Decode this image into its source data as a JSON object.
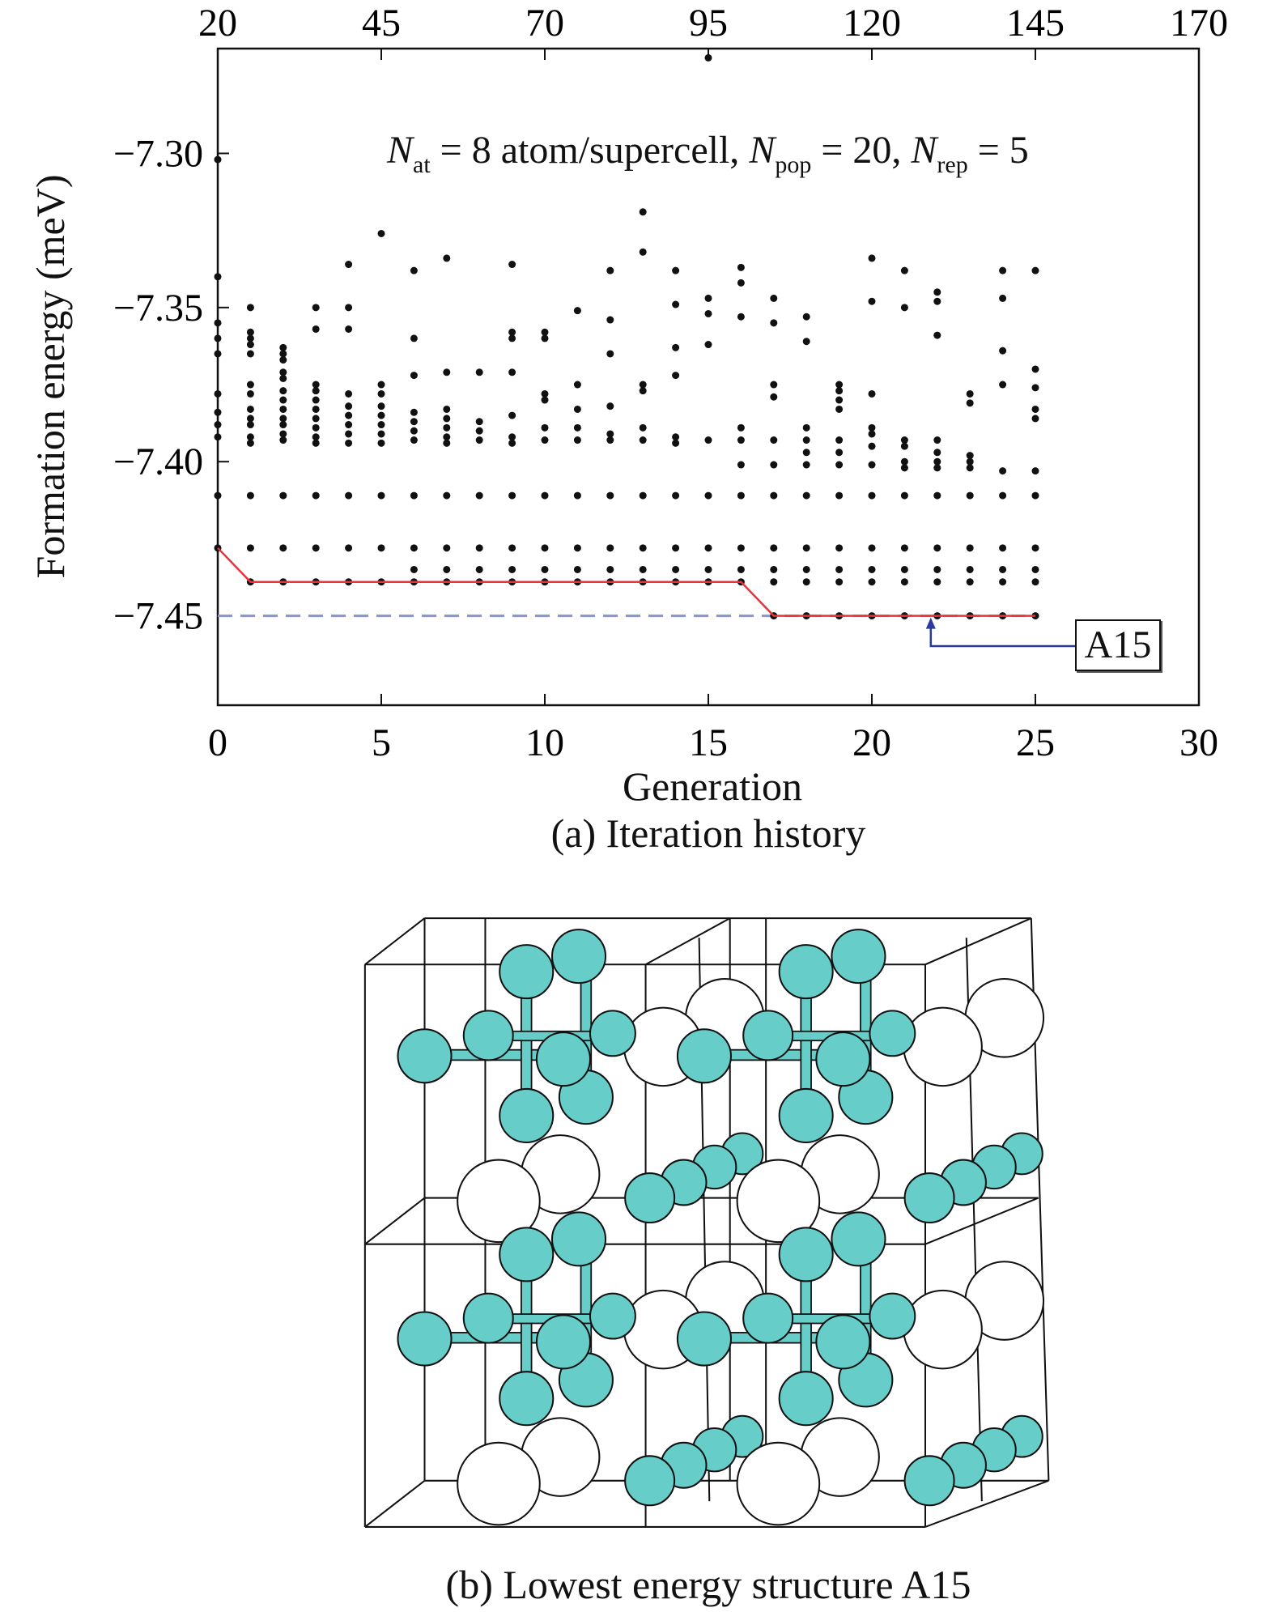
{
  "chart_data": {
    "type": "scatter",
    "title": "",
    "caption": "(a) Iteration history",
    "xlabel": "Generation",
    "ylabel": "Formation energy (meV)",
    "xlim": [
      0,
      30
    ],
    "ylim": [
      -7.479,
      -7.266
    ],
    "xticks": [
      0,
      5,
      10,
      15,
      20,
      25,
      30
    ],
    "yticks": [
      -7.3,
      -7.35,
      -7.4,
      -7.45
    ],
    "ytick_labels": [
      "−7.30",
      "−7.35",
      "−7.40",
      "−7.45"
    ],
    "top_xticks": [
      "20",
      "45",
      "70",
      "95",
      "120",
      "145",
      "170"
    ],
    "annotation": {
      "n1": "N",
      "s1": "at",
      "t1": " = 8 atom/supercell, ",
      "n2": "N",
      "s2": "pop",
      "t2": " = 20, ",
      "n3": "N",
      "s3": "rep",
      "t3": " = 5"
    },
    "colors": {
      "points": "#111111",
      "best_line": "#e8323c",
      "reference_line": "#8a93d0",
      "arrow": "#2a3aa0"
    },
    "points": [
      {
        "gen": 0,
        "energies": [
          -7.302,
          -7.34,
          -7.355,
          -7.36,
          -7.365,
          -7.378,
          -7.384,
          -7.388,
          -7.392,
          -7.411,
          -7.428
        ]
      },
      {
        "gen": 1,
        "energies": [
          -7.35,
          -7.358,
          -7.36,
          -7.362,
          -7.365,
          -7.375,
          -7.378,
          -7.383,
          -7.386,
          -7.388,
          -7.392,
          -7.394,
          -7.411,
          -7.428,
          -7.439
        ]
      },
      {
        "gen": 2,
        "energies": [
          -7.363,
          -7.365,
          -7.367,
          -7.371,
          -7.373,
          -7.377,
          -7.38,
          -7.383,
          -7.386,
          -7.388,
          -7.391,
          -7.393,
          -7.411,
          -7.428,
          -7.439
        ]
      },
      {
        "gen": 3,
        "energies": [
          -7.35,
          -7.357,
          -7.375,
          -7.377,
          -7.38,
          -7.383,
          -7.386,
          -7.389,
          -7.392,
          -7.394,
          -7.411,
          -7.428,
          -7.439
        ]
      },
      {
        "gen": 4,
        "energies": [
          -7.336,
          -7.35,
          -7.357,
          -7.378,
          -7.382,
          -7.385,
          -7.388,
          -7.391,
          -7.394,
          -7.411,
          -7.428,
          -7.439
        ]
      },
      {
        "gen": 5,
        "energies": [
          -7.326,
          -7.375,
          -7.378,
          -7.382,
          -7.385,
          -7.388,
          -7.391,
          -7.394,
          -7.411,
          -7.428,
          -7.439
        ]
      },
      {
        "gen": 6,
        "energies": [
          -7.338,
          -7.36,
          -7.372,
          -7.384,
          -7.387,
          -7.39,
          -7.393,
          -7.411,
          -7.428,
          -7.435,
          -7.439
        ]
      },
      {
        "gen": 7,
        "energies": [
          -7.334,
          -7.371,
          -7.383,
          -7.386,
          -7.389,
          -7.392,
          -7.394,
          -7.411,
          -7.428,
          -7.435,
          -7.439
        ]
      },
      {
        "gen": 8,
        "energies": [
          -7.371,
          -7.387,
          -7.39,
          -7.393,
          -7.411,
          -7.428,
          -7.435,
          -7.439
        ]
      },
      {
        "gen": 9,
        "energies": [
          -7.336,
          -7.358,
          -7.36,
          -7.371,
          -7.385,
          -7.392,
          -7.394,
          -7.411,
          -7.428,
          -7.435,
          -7.439
        ]
      },
      {
        "gen": 10,
        "energies": [
          -7.358,
          -7.36,
          -7.378,
          -7.38,
          -7.389,
          -7.393,
          -7.411,
          -7.428,
          -7.435,
          -7.439
        ]
      },
      {
        "gen": 11,
        "energies": [
          -7.351,
          -7.375,
          -7.383,
          -7.389,
          -7.393,
          -7.411,
          -7.428,
          -7.435,
          -7.439
        ]
      },
      {
        "gen": 12,
        "energies": [
          -7.338,
          -7.354,
          -7.365,
          -7.382,
          -7.391,
          -7.393,
          -7.411,
          -7.428,
          -7.435,
          -7.439
        ]
      },
      {
        "gen": 13,
        "energies": [
          -7.319,
          -7.332,
          -7.375,
          -7.377,
          -7.389,
          -7.393,
          -7.411,
          -7.428,
          -7.435,
          -7.439
        ]
      },
      {
        "gen": 14,
        "energies": [
          -7.338,
          -7.349,
          -7.363,
          -7.372,
          -7.392,
          -7.394,
          -7.411,
          -7.428,
          -7.435,
          -7.439
        ]
      },
      {
        "gen": 15,
        "energies": [
          -7.269,
          -7.347,
          -7.352,
          -7.362,
          -7.393,
          -7.411,
          -7.428,
          -7.435,
          -7.439
        ]
      },
      {
        "gen": 16,
        "energies": [
          -7.337,
          -7.342,
          -7.353,
          -7.389,
          -7.393,
          -7.401,
          -7.411,
          -7.428,
          -7.435,
          -7.439
        ]
      },
      {
        "gen": 17,
        "energies": [
          -7.347,
          -7.355,
          -7.375,
          -7.379,
          -7.393,
          -7.401,
          -7.411,
          -7.428,
          -7.435,
          -7.439,
          -7.45
        ]
      },
      {
        "gen": 18,
        "energies": [
          -7.353,
          -7.361,
          -7.389,
          -7.393,
          -7.397,
          -7.401,
          -7.411,
          -7.428,
          -7.435,
          -7.439,
          -7.45
        ]
      },
      {
        "gen": 19,
        "energies": [
          -7.375,
          -7.377,
          -7.38,
          -7.383,
          -7.393,
          -7.397,
          -7.401,
          -7.411,
          -7.428,
          -7.435,
          -7.439,
          -7.45
        ]
      },
      {
        "gen": 20,
        "energies": [
          -7.334,
          -7.348,
          -7.378,
          -7.389,
          -7.391,
          -7.395,
          -7.401,
          -7.411,
          -7.428,
          -7.435,
          -7.439,
          -7.45
        ]
      },
      {
        "gen": 21,
        "energies": [
          -7.338,
          -7.35,
          -7.393,
          -7.395,
          -7.4,
          -7.402,
          -7.411,
          -7.428,
          -7.435,
          -7.439,
          -7.45
        ]
      },
      {
        "gen": 22,
        "energies": [
          -7.345,
          -7.348,
          -7.359,
          -7.393,
          -7.397,
          -7.4,
          -7.402,
          -7.411,
          -7.428,
          -7.435,
          -7.439,
          -7.45
        ]
      },
      {
        "gen": 23,
        "energies": [
          -7.378,
          -7.381,
          -7.398,
          -7.4,
          -7.402,
          -7.411,
          -7.428,
          -7.435,
          -7.439,
          -7.45
        ]
      },
      {
        "gen": 24,
        "energies": [
          -7.338,
          -7.347,
          -7.364,
          -7.375,
          -7.403,
          -7.411,
          -7.428,
          -7.435,
          -7.439,
          -7.45
        ]
      },
      {
        "gen": 25,
        "energies": [
          -7.338,
          -7.37,
          -7.376,
          -7.383,
          -7.386,
          -7.403,
          -7.411,
          -7.428,
          -7.435,
          -7.439,
          -7.45
        ]
      }
    ],
    "best_line": {
      "x": [
        0,
        1,
        16,
        17,
        25
      ],
      "y": [
        -7.428,
        -7.439,
        -7.439,
        -7.45,
        -7.45
      ]
    },
    "reference_line": {
      "y": -7.45,
      "x": [
        0,
        25
      ],
      "style": "dashed"
    },
    "callout": {
      "label": "A15",
      "target_gen": 22,
      "target_energy": -7.45
    }
  },
  "structure": {
    "caption": "(b) Lowest energy structure A15",
    "colors": {
      "atom_a": "#66cdc8",
      "atom_b": "#ffffff",
      "edge": "#111111"
    }
  }
}
